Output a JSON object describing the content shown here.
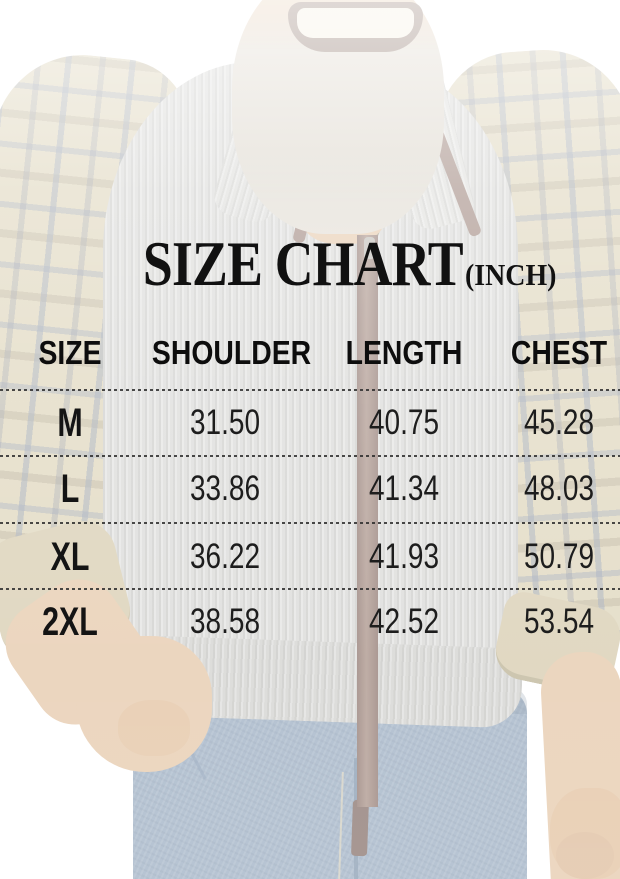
{
  "size_chart": {
    "title": "SIZE CHART",
    "unit_label": "(INCH)",
    "columns": [
      "SIZE",
      "SHOULDER",
      "LENGTH",
      "CHEST"
    ],
    "rows": [
      {
        "size": "M",
        "shoulder": "31.50",
        "length": "40.75",
        "chest": "45.28"
      },
      {
        "size": "L",
        "shoulder": "33.86",
        "length": "41.34",
        "chest": "48.03"
      },
      {
        "size": "XL",
        "shoulder": "36.22",
        "length": "41.93",
        "chest": "50.79"
      },
      {
        "size": "2XL",
        "shoulder": "38.58",
        "length": "42.52",
        "chest": "53.54"
      }
    ]
  },
  "chart_data": {
    "type": "table",
    "title": "SIZE CHART",
    "unit": "INCH",
    "columns": [
      "SIZE",
      "SHOULDER",
      "LENGTH",
      "CHEST"
    ],
    "rows": [
      [
        "M",
        31.5,
        40.75,
        45.28
      ],
      [
        "L",
        33.86,
        41.34,
        48.03
      ],
      [
        "XL",
        36.22,
        41.93,
        50.79
      ],
      [
        "2XL",
        38.58,
        42.52,
        53.54
      ]
    ]
  },
  "colors": {
    "text": "#111111",
    "divider": "#2b2b2b",
    "vest_gray": "#cbcbc8",
    "plaid_tan": "#d2c6a2",
    "plaid_line_blue": "#6e7d96",
    "zipper_brown": "#6a4a40",
    "denim_blue": "#7b93ae",
    "skin": "#dcb68d",
    "cuff_khaki": "#c9ba93",
    "background": "#ffffff"
  },
  "photo": {
    "subject": "man wearing gray ribbed zip sweater vest over plaid shirt and jeans"
  }
}
